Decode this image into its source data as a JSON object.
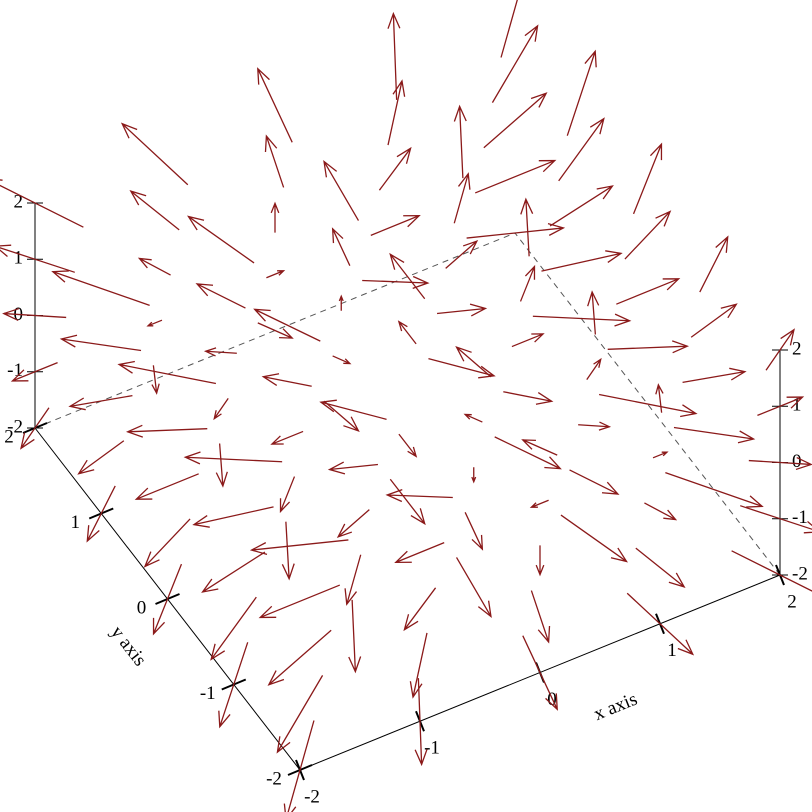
{
  "chart_data": {
    "type": "vector-field3d",
    "color": "#8b1a1a",
    "xlabel": "x axis",
    "ylabel": "y axis",
    "xlim": [
      -2,
      2
    ],
    "ylim": [
      -2,
      2
    ],
    "zlim": [
      -2,
      2
    ],
    "xticks": [
      -2,
      -1,
      0,
      1,
      2
    ],
    "yticks": [
      -2,
      -1,
      0,
      1,
      2
    ],
    "zticks": [
      -2,
      -1,
      0,
      1,
      2
    ],
    "x": [
      -2,
      -2,
      -2,
      -2,
      -2,
      -2,
      -2,
      -2,
      -2,
      -2,
      -2,
      -2,
      -2,
      -2,
      -2,
      -2,
      -2,
      -2,
      -2,
      -2,
      -2,
      -2,
      -2,
      -2,
      -2,
      -1,
      -1,
      -1,
      -1,
      -1,
      -1,
      -1,
      -1,
      -1,
      -1,
      -1,
      -1,
      -1,
      -1,
      -1,
      -1,
      -1,
      -1,
      -1,
      -1,
      -1,
      -1,
      -1,
      -1,
      -1,
      0,
      0,
      0,
      0,
      0,
      0,
      0,
      0,
      0,
      0,
      0,
      0,
      0,
      0,
      0,
      0,
      0,
      0,
      0,
      0,
      0,
      0,
      0,
      0,
      0,
      1,
      1,
      1,
      1,
      1,
      1,
      1,
      1,
      1,
      1,
      1,
      1,
      1,
      1,
      1,
      1,
      1,
      1,
      1,
      1,
      1,
      1,
      1,
      1,
      1,
      2,
      2,
      2,
      2,
      2,
      2,
      2,
      2,
      2,
      2,
      2,
      2,
      2,
      2,
      2,
      2,
      2,
      2,
      2,
      2,
      2,
      2,
      2,
      2,
      2
    ],
    "y": [
      -2,
      -2,
      -2,
      -2,
      -2,
      -1,
      -1,
      -1,
      -1,
      -1,
      0,
      0,
      0,
      0,
      0,
      1,
      1,
      1,
      1,
      1,
      2,
      2,
      2,
      2,
      2,
      -2,
      -2,
      -2,
      -2,
      -2,
      -1,
      -1,
      -1,
      -1,
      -1,
      0,
      0,
      0,
      0,
      0,
      1,
      1,
      1,
      1,
      1,
      2,
      2,
      2,
      2,
      2,
      -2,
      -2,
      -2,
      -2,
      -2,
      -1,
      -1,
      -1,
      -1,
      -1,
      0,
      0,
      0,
      0,
      0,
      1,
      1,
      1,
      1,
      1,
      2,
      2,
      2,
      2,
      2,
      -2,
      -2,
      -2,
      -2,
      -2,
      -1,
      -1,
      -1,
      -1,
      -1,
      0,
      0,
      0,
      0,
      0,
      1,
      1,
      1,
      1,
      1,
      2,
      2,
      2,
      2,
      2,
      -2,
      -2,
      -2,
      -2,
      -2,
      -1,
      -1,
      -1,
      -1,
      -1,
      0,
      0,
      0,
      0,
      0,
      1,
      1,
      1,
      1,
      1,
      2,
      2,
      2,
      2,
      2
    ],
    "z": [
      -2,
      -1,
      0,
      1,
      2,
      -2,
      -1,
      0,
      1,
      2,
      -2,
      -1,
      0,
      1,
      2,
      -2,
      -1,
      0,
      1,
      2,
      -2,
      -1,
      0,
      1,
      2,
      -2,
      -1,
      0,
      1,
      2,
      -2,
      -1,
      0,
      1,
      2,
      -2,
      -1,
      0,
      1,
      2,
      -2,
      -1,
      0,
      1,
      2,
      -2,
      -1,
      0,
      1,
      2,
      -2,
      -1,
      0,
      1,
      2,
      -2,
      -1,
      0,
      1,
      2,
      -2,
      -1,
      0,
      1,
      2,
      -2,
      -1,
      0,
      1,
      2,
      -2,
      -1,
      0,
      1,
      2,
      -2,
      -1,
      0,
      1,
      2,
      -2,
      -1,
      0,
      1,
      2,
      -2,
      -1,
      0,
      1,
      2,
      -2,
      -1,
      0,
      1,
      2,
      -2,
      -1,
      0,
      1,
      2,
      -2,
      -1,
      0,
      1,
      2,
      -2,
      -1,
      0,
      1,
      2,
      -2,
      -1,
      0,
      1,
      2,
      -2,
      -1,
      0,
      1,
      2,
      -2,
      -1,
      0,
      1,
      2
    ],
    "u": [
      -2,
      -2,
      -2,
      -2,
      -2,
      -2,
      -2,
      -2,
      -2,
      -2,
      -2,
      -2,
      -2,
      -2,
      -2,
      -2,
      -2,
      -2,
      -2,
      -2,
      -2,
      -2,
      -2,
      -2,
      -2,
      -1,
      -1,
      -1,
      -1,
      -1,
      -1,
      -1,
      -1,
      -1,
      -1,
      -1,
      -1,
      -1,
      -1,
      -1,
      -1,
      -1,
      -1,
      -1,
      -1,
      -1,
      -1,
      -1,
      -1,
      -1,
      0,
      0,
      0,
      0,
      0,
      0,
      0,
      0,
      0,
      0,
      0,
      0,
      0,
      0,
      0,
      0,
      0,
      0,
      0,
      0,
      0,
      0,
      0,
      0,
      0,
      1,
      1,
      1,
      1,
      1,
      1,
      1,
      1,
      1,
      1,
      1,
      1,
      1,
      1,
      1,
      1,
      1,
      1,
      1,
      1,
      1,
      1,
      1,
      1,
      1,
      2,
      2,
      2,
      2,
      2,
      2,
      2,
      2,
      2,
      2,
      2,
      2,
      2,
      2,
      2,
      2,
      2,
      2,
      2,
      2,
      2,
      2,
      2,
      2,
      2
    ],
    "v": [
      -2,
      -1,
      0,
      1,
      2,
      -2,
      -1,
      0,
      1,
      2,
      -2,
      -1,
      0,
      1,
      2,
      -2,
      -1,
      0,
      1,
      2,
      -2,
      -1,
      0,
      1,
      2,
      -2,
      -1,
      0,
      1,
      2,
      -2,
      -1,
      0,
      1,
      2,
      -2,
      -1,
      0,
      1,
      2,
      -2,
      -1,
      0,
      1,
      2,
      -2,
      -1,
      0,
      1,
      2,
      -2,
      -1,
      0,
      1,
      2,
      -2,
      -1,
      0,
      1,
      2,
      -2,
      -1,
      0,
      1,
      2,
      -2,
      -1,
      0,
      1,
      2,
      -2,
      -1,
      0,
      1,
      2,
      -2,
      -1,
      0,
      1,
      2,
      -2,
      -1,
      0,
      1,
      2,
      -2,
      -1,
      0,
      1,
      2,
      -2,
      -1,
      0,
      1,
      2,
      -2,
      -1,
      0,
      1,
      2,
      -2,
      -1,
      0,
      1,
      2,
      -2,
      -1,
      0,
      1,
      2,
      -2,
      -1,
      0,
      1,
      2,
      -2,
      -1,
      0,
      1,
      2,
      -2,
      -1,
      0,
      1,
      2
    ],
    "w": [
      -2,
      -2,
      -2,
      -2,
      -2,
      -1,
      -1,
      -1,
      -1,
      -1,
      0,
      0,
      0,
      0,
      0,
      1,
      1,
      1,
      1,
      1,
      2,
      2,
      2,
      2,
      2,
      -2,
      -2,
      -2,
      -2,
      -2,
      -1,
      -1,
      -1,
      -1,
      -1,
      0,
      0,
      0,
      0,
      0,
      1,
      1,
      1,
      1,
      1,
      2,
      2,
      2,
      2,
      2,
      -2,
      -2,
      -2,
      -2,
      -2,
      -1,
      -1,
      -1,
      -1,
      -1,
      0,
      0,
      0,
      0,
      0,
      1,
      1,
      1,
      1,
      1,
      2,
      2,
      2,
      2,
      2,
      -2,
      -2,
      -2,
      -2,
      -2,
      -1,
      -1,
      -1,
      -1,
      -1,
      0,
      0,
      0,
      0,
      0,
      1,
      1,
      1,
      1,
      1,
      2,
      2,
      2,
      2,
      2,
      -2,
      -2,
      -2,
      -2,
      -2,
      -1,
      -1,
      -1,
      -1,
      -1,
      0,
      0,
      0,
      0,
      0,
      1,
      1,
      1,
      1,
      1,
      2,
      2,
      2,
      2,
      2
    ]
  }
}
